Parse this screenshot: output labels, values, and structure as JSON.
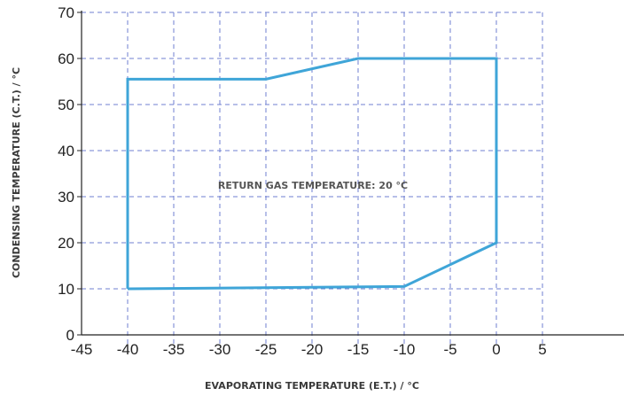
{
  "chart_data": {
    "type": "line",
    "title": "",
    "xlabel": "EVAPORATING TEMPERATURE (E.T.) / °C",
    "ylabel": "CONDENSING TEMPERATURE (C.T.) / °C",
    "xlim": [
      -45,
      5
    ],
    "ylim": [
      0,
      70
    ],
    "x_ticks": [
      -45,
      -40,
      -35,
      -30,
      -25,
      -20,
      -15,
      -10,
      -5,
      0,
      5
    ],
    "y_ticks": [
      0,
      10,
      20,
      30,
      40,
      50,
      60,
      70
    ],
    "x_tick_labels": [
      "-45",
      "-40",
      "-35",
      "-30",
      "-25",
      "-20",
      "-15",
      "-10",
      "-5",
      "0",
      "5"
    ],
    "y_tick_labels": [
      "0",
      "10",
      "20",
      "30",
      "40",
      "50",
      "60",
      "70"
    ],
    "grid": true,
    "grid_style": "dashed",
    "annotation": "RETURN GAS TEMPERATURE: 20 °C",
    "series": [
      {
        "closed": true,
        "color": "#3fa5d8",
        "points": [
          [
            -40,
            10
          ],
          [
            -40,
            55.5
          ],
          [
            -25,
            55.5
          ],
          [
            -15,
            60
          ],
          [
            0,
            60
          ],
          [
            0,
            20
          ],
          [
            -10,
            10.5
          ],
          [
            -40,
            10
          ]
        ]
      }
    ]
  },
  "colors": {
    "envelope": "#3fa5d8",
    "grid": "#6f7fd0",
    "axis": "#222222"
  }
}
